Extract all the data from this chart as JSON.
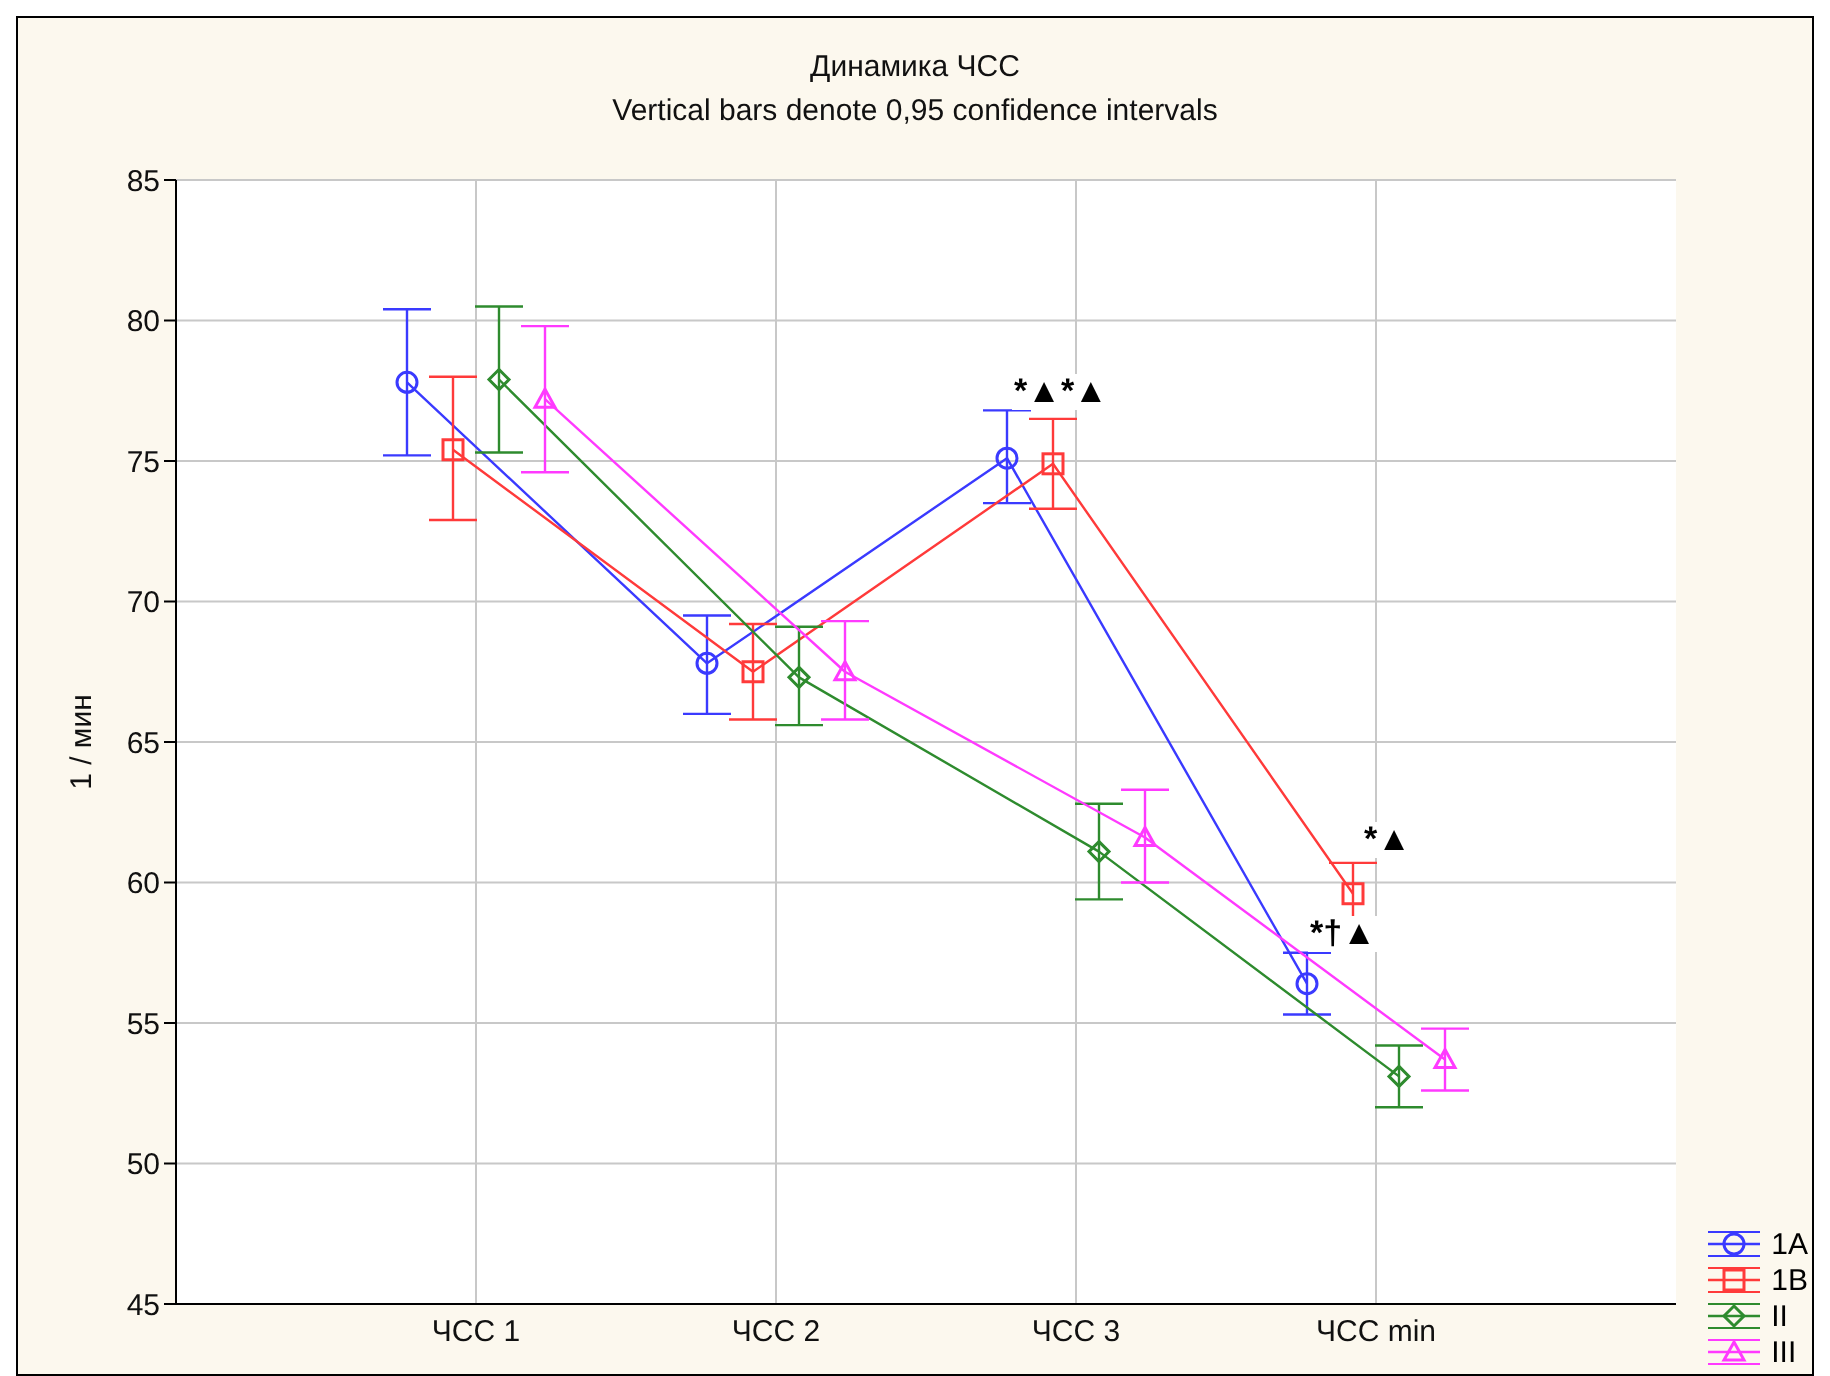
{
  "chart_data": {
    "type": "line",
    "title": "Динамика ЧСС",
    "subtitle": "Vertical bars denote 0,95 confidence intervals",
    "ylabel": "1 / мин",
    "categories": [
      "ЧСС 1",
      "ЧСС 2",
      "ЧСС 3",
      "ЧСС min"
    ],
    "series": [
      {
        "name": "1A",
        "color": "#3a3aff",
        "marker": "circle",
        "values": [
          77.8,
          67.8,
          75.1,
          56.4
        ],
        "errors": [
          [
            75.2,
            80.4
          ],
          [
            66.0,
            69.5
          ],
          [
            73.5,
            76.8
          ],
          [
            55.3,
            57.5
          ]
        ]
      },
      {
        "name": "1B",
        "color": "#ff3a3a",
        "marker": "square",
        "values": [
          75.4,
          67.5,
          74.9,
          59.6
        ],
        "errors": [
          [
            72.9,
            78.0
          ],
          [
            65.8,
            69.2
          ],
          [
            73.3,
            76.5
          ],
          [
            58.4,
            60.7
          ]
        ]
      },
      {
        "name": "II",
        "color": "#2e8b2e",
        "marker": "diamond",
        "values": [
          77.9,
          67.3,
          61.1,
          53.1
        ],
        "errors": [
          [
            75.3,
            80.5
          ],
          [
            65.6,
            69.1
          ],
          [
            59.4,
            62.8
          ],
          [
            52.0,
            54.2
          ]
        ]
      },
      {
        "name": "III",
        "color": "#ff3aff",
        "marker": "triangle",
        "values": [
          77.2,
          67.5,
          61.6,
          53.7
        ],
        "errors": [
          [
            74.6,
            79.8
          ],
          [
            65.8,
            69.3
          ],
          [
            60.0,
            63.3
          ],
          [
            52.6,
            54.8
          ]
        ]
      }
    ],
    "ylim": [
      45,
      85
    ],
    "yticks": [
      45,
      50,
      55,
      60,
      65,
      70,
      75,
      80,
      85
    ],
    "grid": true,
    "legend": "bottom right",
    "line_style": "solid",
    "annotations": [
      "*▲*▲",
      "*▲",
      "*†▲"
    ]
  }
}
